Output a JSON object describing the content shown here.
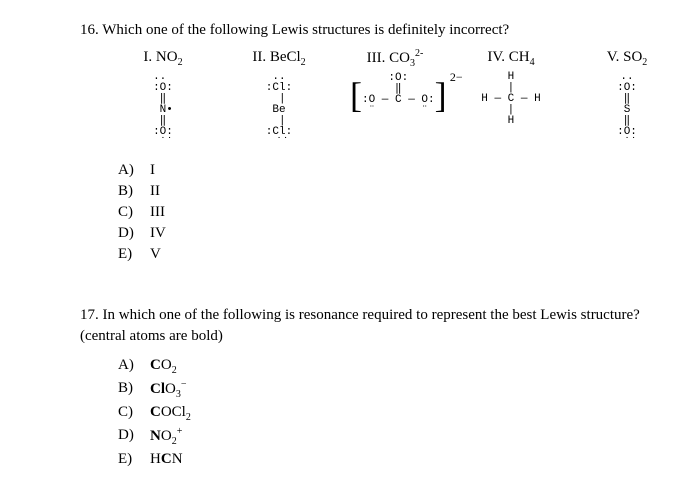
{
  "q16": {
    "number": "16.",
    "text": "Which one of the following Lewis structures is definitely incorrect?",
    "structures": [
      {
        "label_prefix": "I. NO",
        "label_sub": "2",
        "charge_sup": "",
        "ascii": ".. \n:O:\n ‖ \n N•\n ‖ \n:O:\n ˙˙"
      },
      {
        "label_prefix": "II. BeCl",
        "label_sub": "2",
        "charge_sup": "",
        "ascii": " .. \n:Cl:\n  | \n Be \n  | \n:Cl:\n ˙˙"
      },
      {
        "label_prefix": "III. CO",
        "label_sub": "3",
        "charge_sup": "2-",
        "ascii": "    :O:    \n     ‖     \n:O — C — O:\n ¨       ¨ "
      },
      {
        "label_prefix": "IV. CH",
        "label_sub": "4",
        "charge_sup": "",
        "ascii": "    H    \n    |    \nH — C — H\n    |    \n    H    "
      },
      {
        "label_prefix": "V. SO",
        "label_sub": "2",
        "charge_sup": "",
        "ascii": " .. \n:O:\n ‖ \n S \n ‖ \n:O:\n ˙˙"
      }
    ],
    "options": [
      {
        "letter": "A)",
        "text": "I"
      },
      {
        "letter": "B)",
        "text": "II"
      },
      {
        "letter": "C)",
        "text": "III"
      },
      {
        "letter": "D)",
        "text": "IV"
      },
      {
        "letter": "E)",
        "text": "V"
      }
    ]
  },
  "q17": {
    "number": "17.",
    "text": "In which one of the following is resonance required to represent the best Lewis structure? (central atoms are bold)",
    "options": [
      {
        "letter": "A)",
        "central": "C",
        "pre": "",
        "post": "O",
        "sub": "2",
        "sup": ""
      },
      {
        "letter": "B)",
        "central": "Cl",
        "pre": "",
        "post": "O",
        "sub": "3",
        "sup": "−"
      },
      {
        "letter": "C)",
        "central": "C",
        "pre": "",
        "post": "OCl",
        "sub": "2",
        "sup": ""
      },
      {
        "letter": "D)",
        "central": "N",
        "pre": "",
        "post": "O",
        "sub": "2",
        "sup": "+"
      },
      {
        "letter": "E)",
        "central": "C",
        "pre": "H",
        "post": "N",
        "sub": "",
        "sup": ""
      }
    ]
  }
}
